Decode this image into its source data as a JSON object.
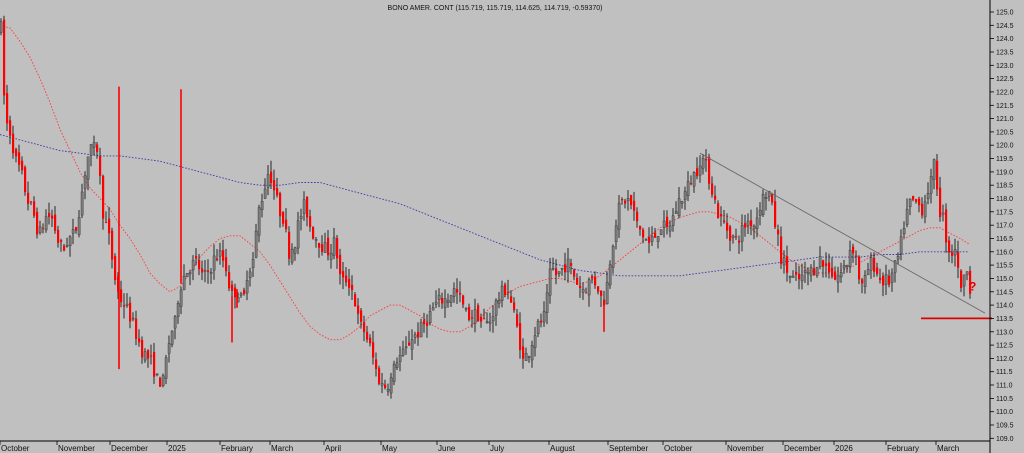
{
  "chart_data": {
    "type": "candlestick",
    "title": "BONO AMER. CONT (115.719, 115.719, 114.625, 114.719, -0.59370)",
    "ylim": [
      108.9,
      125.3
    ],
    "y_ticks": [
      "109.0",
      "109.5",
      "110.0",
      "110.5",
      "111.0",
      "111.5",
      "112.0",
      "112.5",
      "113.0",
      "113.5",
      "114.0",
      "114.5",
      "115.0",
      "115.5",
      "116.0",
      "116.5",
      "117.0",
      "117.5",
      "118.0",
      "118.5",
      "119.0",
      "119.5",
      "120.0",
      "120.5",
      "121.0",
      "121.5",
      "122.0",
      "122.5",
      "123.0",
      "123.5",
      "124.0",
      "124.5",
      "125.0"
    ],
    "x_ticks": [
      "October",
      "November",
      "December",
      "2025",
      "February",
      "March",
      "April",
      "May",
      "June",
      "July",
      "August",
      "September",
      "October",
      "November",
      "December",
      "2026",
      "February",
      "March"
    ],
    "price_anchors": [
      [
        0,
        124.4
      ],
      [
        4,
        121.0
      ],
      [
        10,
        120.4
      ],
      [
        14,
        119.5
      ],
      [
        20,
        119.0
      ],
      [
        26,
        118.0
      ],
      [
        32,
        117.5
      ],
      [
        38,
        116.6
      ],
      [
        46,
        117.4
      ],
      [
        52,
        117.2
      ],
      [
        56,
        116.5
      ],
      [
        62,
        116.0
      ],
      [
        66,
        116.4
      ],
      [
        74,
        116.7
      ],
      [
        80,
        118.0
      ],
      [
        86,
        119.5
      ],
      [
        90,
        119.8
      ],
      [
        96,
        119.9
      ],
      [
        102,
        117.5
      ],
      [
        108,
        116.5
      ],
      [
        114,
        115.0
      ],
      [
        118,
        114.3
      ],
      [
        124,
        114.0
      ],
      [
        130,
        113.5
      ],
      [
        136,
        112.8
      ],
      [
        142,
        112.2
      ],
      [
        148,
        112.0
      ],
      [
        152,
        111.7
      ],
      [
        156,
        111.2
      ],
      [
        162,
        111.1
      ],
      [
        166,
        112.2
      ],
      [
        170,
        113.0
      ],
      [
        174,
        113.3
      ],
      [
        178,
        114.6
      ],
      [
        184,
        115.2
      ],
      [
        190,
        115.5
      ],
      [
        196,
        115.6
      ],
      [
        202,
        115.0
      ],
      [
        208,
        115.3
      ],
      [
        214,
        115.8
      ],
      [
        220,
        115.9
      ],
      [
        226,
        115.3
      ],
      [
        230,
        114.3
      ],
      [
        236,
        114.6
      ],
      [
        242,
        114.0
      ],
      [
        246,
        115.2
      ],
      [
        252,
        115.7
      ],
      [
        258,
        117.6
      ],
      [
        264,
        118.5
      ],
      [
        268,
        119.1
      ],
      [
        274,
        118.2
      ],
      [
        278,
        117.6
      ],
      [
        282,
        117.3
      ],
      [
        288,
        116.0
      ],
      [
        294,
        116.4
      ],
      [
        298,
        117.2
      ],
      [
        304,
        117.8
      ],
      [
        310,
        116.8
      ],
      [
        316,
        116.5
      ],
      [
        322,
        116.2
      ],
      [
        328,
        116.0
      ],
      [
        334,
        116.4
      ],
      [
        340,
        114.8
      ],
      [
        346,
        115.0
      ],
      [
        352,
        114.5
      ],
      [
        358,
        113.3
      ],
      [
        364,
        113.0
      ],
      [
        370,
        112.3
      ],
      [
        376,
        111.4
      ],
      [
        382,
        110.9
      ],
      [
        390,
        111.2
      ],
      [
        396,
        112.0
      ],
      [
        404,
        112.2
      ],
      [
        410,
        112.8
      ],
      [
        416,
        112.9
      ],
      [
        422,
        113.2
      ],
      [
        428,
        113.6
      ],
      [
        434,
        114.0
      ],
      [
        440,
        114.2
      ],
      [
        446,
        114.2
      ],
      [
        452,
        114.6
      ],
      [
        458,
        114.3
      ],
      [
        466,
        113.6
      ],
      [
        472,
        113.6
      ],
      [
        476,
        113.7
      ],
      [
        480,
        113.4
      ],
      [
        488,
        113.3
      ],
      [
        494,
        114.0
      ],
      [
        500,
        114.4
      ],
      [
        506,
        114.7
      ],
      [
        512,
        113.8
      ],
      [
        518,
        112.8
      ],
      [
        522,
        111.9
      ],
      [
        528,
        112.3
      ],
      [
        534,
        113.0
      ],
      [
        540,
        113.4
      ],
      [
        544,
        113.6
      ],
      [
        550,
        115.4
      ],
      [
        556,
        115.1
      ],
      [
        562,
        115.4
      ],
      [
        566,
        115.6
      ],
      [
        572,
        115.2
      ],
      [
        578,
        114.7
      ],
      [
        584,
        114.6
      ],
      [
        590,
        115.0
      ],
      [
        596,
        114.8
      ],
      [
        602,
        114.0
      ],
      [
        606,
        114.8
      ],
      [
        610,
        116.0
      ],
      [
        616,
        117.4
      ],
      [
        620,
        117.8
      ],
      [
        626,
        118.0
      ],
      [
        632,
        117.6
      ],
      [
        636,
        117.0
      ],
      [
        642,
        116.6
      ],
      [
        648,
        116.3
      ],
      [
        654,
        116.6
      ],
      [
        660,
        117.0
      ],
      [
        666,
        116.8
      ],
      [
        672,
        117.3
      ],
      [
        678,
        117.9
      ],
      [
        684,
        118.2
      ],
      [
        690,
        118.7
      ],
      [
        696,
        119.1
      ],
      [
        700,
        119.6
      ],
      [
        704,
        119.3
      ],
      [
        708,
        118.8
      ],
      [
        712,
        118.2
      ],
      [
        718,
        117.3
      ],
      [
        724,
        117.0
      ],
      [
        730,
        116.6
      ],
      [
        736,
        116.4
      ],
      [
        742,
        116.9
      ],
      [
        748,
        117.2
      ],
      [
        754,
        117.0
      ],
      [
        758,
        117.7
      ],
      [
        764,
        118.2
      ],
      [
        768,
        118.2
      ],
      [
        772,
        117.4
      ],
      [
        776,
        116.7
      ],
      [
        780,
        115.8
      ],
      [
        786,
        115.3
      ],
      [
        790,
        115.0
      ],
      [
        796,
        114.9
      ],
      [
        800,
        115.0
      ],
      [
        806,
        115.2
      ],
      [
        812,
        115.3
      ],
      [
        818,
        115.8
      ],
      [
        822,
        115.5
      ],
      [
        828,
        115.4
      ],
      [
        834,
        115.0
      ],
      [
        840,
        115.2
      ],
      [
        846,
        115.6
      ],
      [
        850,
        116.3
      ],
      [
        854,
        116.0
      ],
      [
        860,
        114.6
      ],
      [
        864,
        114.9
      ],
      [
        868,
        115.5
      ],
      [
        872,
        115.6
      ],
      [
        878,
        115.0
      ],
      [
        882,
        114.9
      ],
      [
        888,
        114.9
      ],
      [
        892,
        115.2
      ],
      [
        896,
        115.6
      ],
      [
        900,
        116.3
      ],
      [
        904,
        117.3
      ],
      [
        910,
        117.9
      ],
      [
        916,
        117.8
      ],
      [
        922,
        117.6
      ],
      [
        926,
        118.3
      ],
      [
        930,
        118.6
      ],
      [
        934,
        119.4
      ],
      [
        938,
        117.6
      ],
      [
        942,
        117.3
      ],
      [
        946,
        116.3
      ],
      [
        950,
        115.9
      ],
      [
        954,
        116.2
      ],
      [
        958,
        114.9
      ],
      [
        962,
        114.7
      ],
      [
        966,
        115.5
      ],
      [
        969,
        114.7
      ]
    ],
    "spikes": [
      [
        118,
        122.2
      ],
      [
        118,
        111.6
      ],
      [
        180,
        122.1
      ],
      [
        222,
        115.8
      ],
      [
        231,
        112.6
      ],
      [
        236,
        113.9
      ],
      [
        603,
        113.0
      ]
    ],
    "ma_fast_anchors": [
      [
        0,
        124.5
      ],
      [
        10,
        124.4
      ],
      [
        20,
        123.9
      ],
      [
        30,
        123.3
      ],
      [
        40,
        122.5
      ],
      [
        50,
        121.6
      ],
      [
        60,
        120.6
      ],
      [
        70,
        119.8
      ],
      [
        80,
        119.0
      ],
      [
        90,
        118.4
      ],
      [
        100,
        118.0
      ],
      [
        110,
        117.6
      ],
      [
        120,
        117.0
      ],
      [
        130,
        116.5
      ],
      [
        140,
        115.9
      ],
      [
        150,
        115.2
      ],
      [
        160,
        114.8
      ],
      [
        170,
        114.5
      ],
      [
        180,
        114.7
      ],
      [
        190,
        115.2
      ],
      [
        200,
        115.8
      ],
      [
        210,
        116.2
      ],
      [
        220,
        116.5
      ],
      [
        230,
        116.6
      ],
      [
        240,
        116.6
      ],
      [
        250,
        116.3
      ],
      [
        260,
        116.0
      ],
      [
        270,
        115.5
      ],
      [
        280,
        114.9
      ],
      [
        290,
        114.3
      ],
      [
        300,
        113.7
      ],
      [
        310,
        113.2
      ],
      [
        320,
        112.9
      ],
      [
        330,
        112.7
      ],
      [
        340,
        112.7
      ],
      [
        350,
        112.9
      ],
      [
        360,
        113.2
      ],
      [
        370,
        113.6
      ],
      [
        380,
        113.8
      ],
      [
        390,
        114.0
      ],
      [
        400,
        114.0
      ],
      [
        410,
        113.8
      ],
      [
        420,
        113.6
      ],
      [
        430,
        113.3
      ],
      [
        440,
        113.1
      ],
      [
        450,
        113.0
      ],
      [
        460,
        113.0
      ],
      [
        470,
        113.2
      ],
      [
        480,
        113.5
      ],
      [
        490,
        113.9
      ],
      [
        500,
        114.2
      ],
      [
        510,
        114.5
      ],
      [
        520,
        114.7
      ],
      [
        530,
        114.8
      ],
      [
        540,
        114.9
      ],
      [
        550,
        115.0
      ],
      [
        560,
        115.0
      ],
      [
        570,
        114.9
      ],
      [
        580,
        114.8
      ],
      [
        590,
        114.9
      ],
      [
        600,
        115.1
      ],
      [
        610,
        115.4
      ],
      [
        620,
        115.7
      ],
      [
        630,
        116.0
      ],
      [
        640,
        116.3
      ],
      [
        650,
        116.6
      ],
      [
        660,
        116.9
      ],
      [
        670,
        117.1
      ],
      [
        680,
        117.3
      ],
      [
        690,
        117.4
      ],
      [
        700,
        117.5
      ],
      [
        710,
        117.5
      ],
      [
        720,
        117.4
      ],
      [
        730,
        117.3
      ],
      [
        740,
        117.1
      ],
      [
        750,
        116.9
      ],
      [
        760,
        116.6
      ],
      [
        770,
        116.3
      ],
      [
        780,
        116.0
      ],
      [
        790,
        115.7
      ],
      [
        800,
        115.5
      ],
      [
        810,
        115.3
      ],
      [
        820,
        115.2
      ],
      [
        830,
        115.2
      ],
      [
        840,
        115.3
      ],
      [
        850,
        115.4
      ],
      [
        860,
        115.6
      ],
      [
        870,
        115.8
      ],
      [
        880,
        116.0
      ],
      [
        890,
        116.2
      ],
      [
        900,
        116.4
      ],
      [
        910,
        116.6
      ],
      [
        920,
        116.8
      ],
      [
        930,
        116.9
      ],
      [
        940,
        116.9
      ],
      [
        950,
        116.7
      ],
      [
        960,
        116.5
      ],
      [
        969,
        116.3
      ]
    ],
    "ma_slow_anchors": [
      [
        0,
        120.4
      ],
      [
        20,
        120.2
      ],
      [
        40,
        120.0
      ],
      [
        60,
        119.8
      ],
      [
        80,
        119.7
      ],
      [
        100,
        119.6
      ],
      [
        120,
        119.6
      ],
      [
        140,
        119.5
      ],
      [
        160,
        119.4
      ],
      [
        180,
        119.2
      ],
      [
        200,
        119.0
      ],
      [
        220,
        118.8
      ],
      [
        240,
        118.6
      ],
      [
        260,
        118.5
      ],
      [
        280,
        118.5
      ],
      [
        300,
        118.6
      ],
      [
        320,
        118.6
      ],
      [
        340,
        118.4
      ],
      [
        360,
        118.2
      ],
      [
        380,
        118.0
      ],
      [
        400,
        117.8
      ],
      [
        420,
        117.5
      ],
      [
        440,
        117.2
      ],
      [
        460,
        116.9
      ],
      [
        480,
        116.6
      ],
      [
        500,
        116.3
      ],
      [
        520,
        116.0
      ],
      [
        540,
        115.7
      ],
      [
        560,
        115.5
      ],
      [
        580,
        115.3
      ],
      [
        600,
        115.2
      ],
      [
        620,
        115.1
      ],
      [
        640,
        115.1
      ],
      [
        660,
        115.1
      ],
      [
        680,
        115.1
      ],
      [
        700,
        115.2
      ],
      [
        720,
        115.3
      ],
      [
        740,
        115.4
      ],
      [
        760,
        115.5
      ],
      [
        780,
        115.6
      ],
      [
        800,
        115.7
      ],
      [
        820,
        115.8
      ],
      [
        840,
        115.8
      ],
      [
        860,
        115.8
      ],
      [
        880,
        115.9
      ],
      [
        900,
        115.9
      ],
      [
        920,
        116.0
      ],
      [
        940,
        116.0
      ],
      [
        960,
        116.0
      ],
      [
        969,
        116.0
      ]
    ],
    "trendline": [
      [
        700,
        119.7
      ],
      [
        985,
        113.7
      ]
    ],
    "support_level": 113.5,
    "support_range": [
      921,
      992
    ],
    "annotation": "?",
    "colors": {
      "background": "#c0c0c0",
      "up_candle": "#7a7a7a",
      "down_candle": "#ff0000",
      "wick": "#000000",
      "ma_fast": "#ff3b3b",
      "ma_slow": "#3a3aa8",
      "trendline": "#6a6a6a",
      "support": "#e00000"
    },
    "grid": false,
    "legend": "none"
  }
}
